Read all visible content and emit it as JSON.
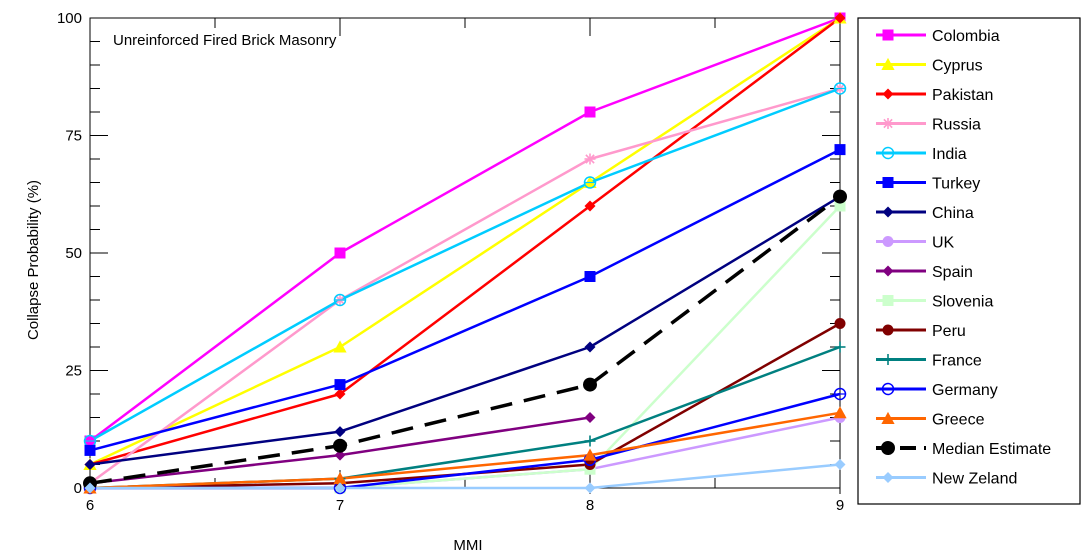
{
  "chart_data": {
    "type": "line",
    "title": "Unreinforced Fired Brick Masonry",
    "xlabel": "MMI",
    "ylabel": "Collapse Probability (%)",
    "x": [
      6,
      7,
      8,
      9
    ],
    "xticks": [
      "6",
      "7",
      "8",
      "9"
    ],
    "yticks": [
      "0",
      "25",
      "50",
      "75",
      "100"
    ],
    "xlim": [
      6,
      9
    ],
    "ylim": [
      0,
      100
    ],
    "grid": false,
    "legend_position": "right",
    "series": [
      {
        "name": "Colombia",
        "color": "#ff00ff",
        "marker": "square",
        "values": [
          10,
          50,
          80,
          100
        ]
      },
      {
        "name": "Cyprus",
        "color": "#ffff00",
        "marker": "triangle",
        "values": [
          5,
          30,
          65,
          100
        ]
      },
      {
        "name": "Pakistan",
        "color": "#ff0000",
        "marker": "diamond",
        "values": [
          5,
          20,
          60,
          100
        ]
      },
      {
        "name": "Russia",
        "color": "#ff99cc",
        "marker": "star",
        "values": [
          1,
          40,
          70,
          85
        ]
      },
      {
        "name": "India",
        "color": "#00ccff",
        "marker": "circle-open",
        "values": [
          10,
          40,
          65,
          85
        ]
      },
      {
        "name": "Turkey",
        "color": "#0000ff",
        "marker": "square",
        "values": [
          8,
          22,
          45,
          72
        ]
      },
      {
        "name": "China",
        "color": "#000080",
        "marker": "diamond",
        "values": [
          5,
          12,
          30,
          62
        ]
      },
      {
        "name": "UK",
        "color": "#cc99ff",
        "marker": "circle",
        "values": [
          0,
          0,
          4,
          15
        ]
      },
      {
        "name": "Spain",
        "color": "#800080",
        "marker": "diamond",
        "values": [
          1,
          7,
          15,
          null
        ]
      },
      {
        "name": "Slovenia",
        "color": "#ccffcc",
        "marker": "square",
        "values": [
          0,
          0,
          4,
          60
        ]
      },
      {
        "name": "Peru",
        "color": "#800000",
        "marker": "circle",
        "values": [
          0,
          1,
          5,
          35
        ]
      },
      {
        "name": "France",
        "color": "#008080",
        "marker": "plus",
        "values": [
          0,
          2,
          10,
          30
        ]
      },
      {
        "name": "Germany",
        "color": "#0000ff",
        "marker": "circle-open",
        "values": [
          0,
          0,
          6,
          20
        ]
      },
      {
        "name": "Greece",
        "color": "#ff6600",
        "marker": "triangle",
        "values": [
          0,
          2,
          7,
          16
        ]
      },
      {
        "name": "Median Estimate",
        "color": "#000000",
        "marker": "circle",
        "dashed": true,
        "values": [
          1,
          9,
          22,
          62
        ]
      },
      {
        "name": "New Zeland",
        "color": "#99ccff",
        "marker": "diamond",
        "values": [
          0,
          0,
          0,
          5
        ]
      }
    ]
  }
}
